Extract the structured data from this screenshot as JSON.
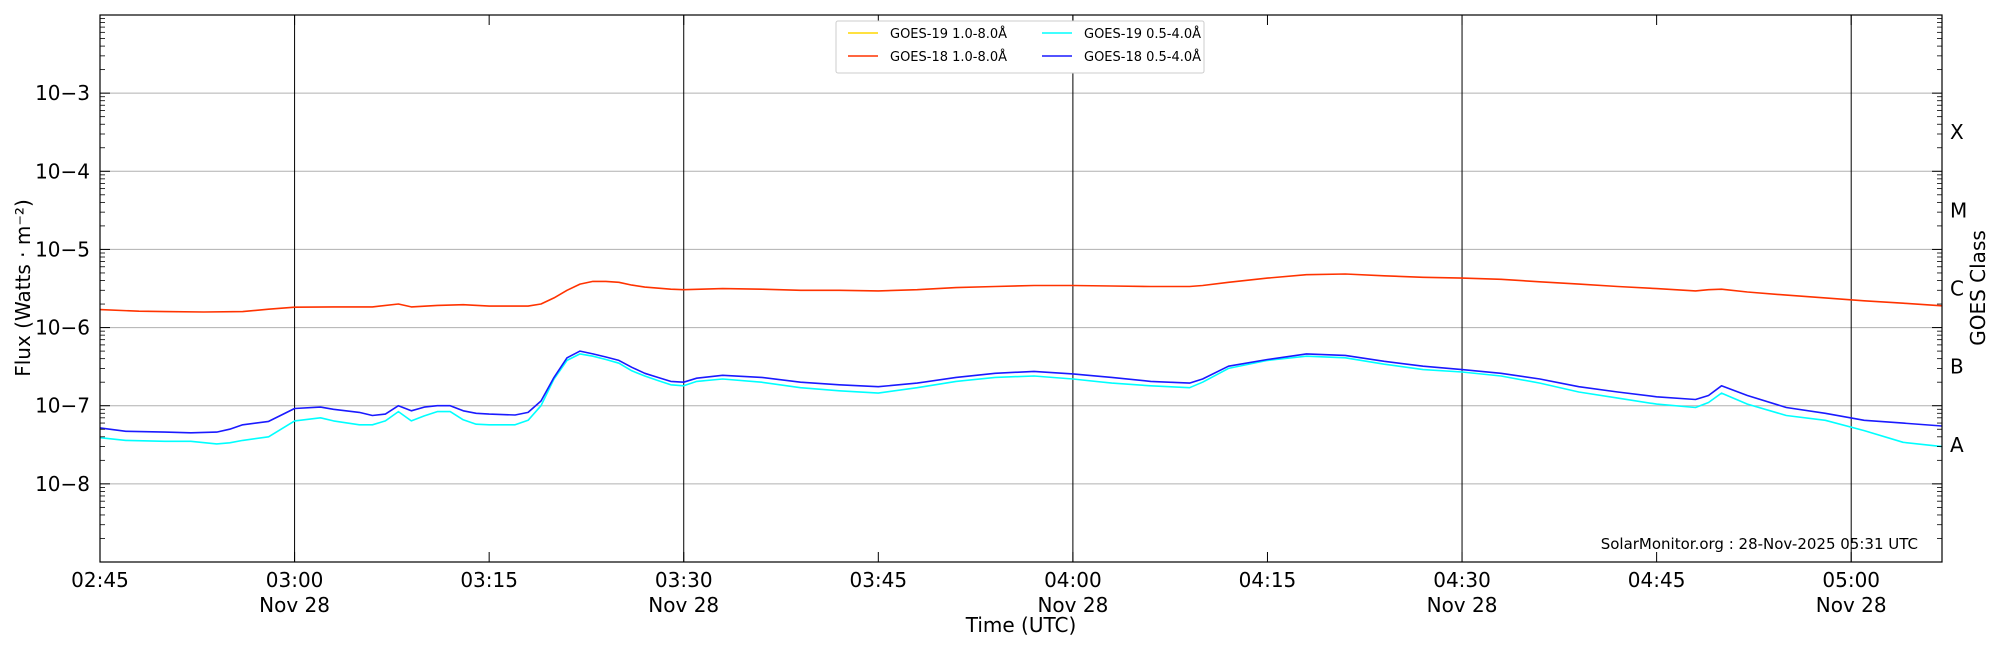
{
  "chart_data": {
    "type": "line",
    "y_scale": "log",
    "ylim": [
      1e-09,
      0.01
    ],
    "xlim": [
      "2025-11-28T02:45",
      "2025-11-28T05:07"
    ],
    "grid": "horizontal at each decade; vertical black lines at 03:00, 03:30, 04:00, 04:30, 05:00",
    "xlabel": "Time (UTC)",
    "ylabel": "Flux (Watts · m⁻²)",
    "y2label": "GOES Class",
    "credit": "SolarMonitor.org : 28-Nov-2025 05:31 UTC",
    "legend_position": "top-center",
    "x_ticks": [
      {
        "time": "02:45",
        "label": "02:45",
        "sublabel": ""
      },
      {
        "time": "03:00",
        "label": "03:00",
        "sublabel": "Nov 28"
      },
      {
        "time": "03:15",
        "label": "03:15",
        "sublabel": ""
      },
      {
        "time": "03:30",
        "label": "03:30",
        "sublabel": "Nov 28"
      },
      {
        "time": "03:45",
        "label": "03:45",
        "sublabel": ""
      },
      {
        "time": "04:00",
        "label": "04:00",
        "sublabel": "Nov 28"
      },
      {
        "time": "04:15",
        "label": "04:15",
        "sublabel": ""
      },
      {
        "time": "04:30",
        "label": "04:30",
        "sublabel": "Nov 28"
      },
      {
        "time": "04:45",
        "label": "04:45",
        "sublabel": ""
      },
      {
        "time": "05:00",
        "label": "05:00",
        "sublabel": "Nov 28"
      }
    ],
    "y_ticks": [
      {
        "exp": -8,
        "label": "10−8"
      },
      {
        "exp": -7,
        "label": "10−7"
      },
      {
        "exp": -6,
        "label": "10−6"
      },
      {
        "exp": -5,
        "label": "10−5"
      },
      {
        "exp": -4,
        "label": "10−4"
      },
      {
        "exp": -3,
        "label": "10−3"
      }
    ],
    "classes": [
      {
        "label": "A",
        "exp": -7.5
      },
      {
        "label": "B",
        "exp": -6.5
      },
      {
        "label": "C",
        "exp": -5.5
      },
      {
        "label": "M",
        "exp": -4.5
      },
      {
        "label": "X",
        "exp": -3.5
      }
    ],
    "series": [
      {
        "name": "GOES-19 1.0-8.0Å",
        "color": "#ffd700",
        "x": [],
        "y": []
      },
      {
        "name": "GOES-18 1.0-8.0Å",
        "color": "#ff3300",
        "x": [
          "02:45",
          "02:48",
          "02:50",
          "02:53",
          "02:56",
          "02:58",
          "03:00",
          "03:03",
          "03:06",
          "03:08",
          "03:09",
          "03:11",
          "03:13",
          "03:15",
          "03:18",
          "03:19",
          "03:20",
          "03:21",
          "03:22",
          "03:23",
          "03:24",
          "03:25",
          "03:26",
          "03:27",
          "03:29",
          "03:30",
          "03:33",
          "03:36",
          "03:39",
          "03:42",
          "03:45",
          "03:48",
          "03:51",
          "03:54",
          "03:57",
          "04:00",
          "04:03",
          "04:06",
          "04:09",
          "04:10",
          "04:12",
          "04:15",
          "04:18",
          "04:21",
          "04:24",
          "04:27",
          "04:30",
          "04:33",
          "04:36",
          "04:39",
          "04:42",
          "04:45",
          "04:48",
          "04:49",
          "04:50",
          "04:52",
          "04:55",
          "04:58",
          "05:01",
          "05:04",
          "05:07"
        ],
        "y": [
          1.7e-06,
          1.62e-06,
          1.6e-06,
          1.58e-06,
          1.6e-06,
          1.72e-06,
          1.82e-06,
          1.84e-06,
          1.84e-06,
          2e-06,
          1.84e-06,
          1.92e-06,
          1.96e-06,
          1.88e-06,
          1.88e-06,
          2e-06,
          2.4e-06,
          3e-06,
          3.6e-06,
          3.9e-06,
          3.9e-06,
          3.8e-06,
          3.5e-06,
          3.3e-06,
          3.1e-06,
          3.05e-06,
          3.15e-06,
          3.1e-06,
          3e-06,
          3e-06,
          2.95e-06,
          3.05e-06,
          3.25e-06,
          3.35e-06,
          3.45e-06,
          3.45e-06,
          3.4e-06,
          3.35e-06,
          3.35e-06,
          3.45e-06,
          3.8e-06,
          4.3e-06,
          4.75e-06,
          4.85e-06,
          4.6e-06,
          4.4e-06,
          4.3e-06,
          4.15e-06,
          3.85e-06,
          3.6e-06,
          3.35e-06,
          3.15e-06,
          2.95e-06,
          3.05e-06,
          3.1e-06,
          2.85e-06,
          2.6e-06,
          2.4e-06,
          2.2e-06,
          2.05e-06,
          1.9e-06
        ]
      },
      {
        "name": "GOES-19 0.5-4.0Å",
        "color": "#00ffff",
        "x": [
          "02:45",
          "02:47",
          "02:50",
          "02:52",
          "02:54",
          "02:55",
          "02:56",
          "02:58",
          "03:00",
          "03:02",
          "03:03",
          "03:05",
          "03:06",
          "03:07",
          "03:08",
          "03:09",
          "03:10",
          "03:11",
          "03:12",
          "03:13",
          "03:14",
          "03:15",
          "03:17",
          "03:18",
          "03:19",
          "03:20",
          "03:21",
          "03:22",
          "03:23",
          "03:24",
          "03:25",
          "03:26",
          "03:27",
          "03:28",
          "03:29",
          "03:30",
          "03:31",
          "03:33",
          "03:36",
          "03:39",
          "03:42",
          "03:45",
          "03:48",
          "03:51",
          "03:54",
          "03:57",
          "04:00",
          "04:03",
          "04:06",
          "04:09",
          "04:10",
          "04:12",
          "04:15",
          "04:18",
          "04:21",
          "04:24",
          "04:27",
          "04:30",
          "04:33",
          "04:36",
          "04:39",
          "04:42",
          "04:45",
          "04:48",
          "04:49",
          "04:50",
          "04:52",
          "04:55",
          "04:58",
          "05:01",
          "05:04",
          "05:07"
        ],
        "y": [
          3.9e-08,
          3.6e-08,
          3.5e-08,
          3.5e-08,
          3.25e-08,
          3.35e-08,
          3.6e-08,
          4e-08,
          6.4e-08,
          7e-08,
          6.4e-08,
          5.7e-08,
          5.7e-08,
          6.4e-08,
          8.4e-08,
          6.4e-08,
          7.4e-08,
          8.4e-08,
          8.4e-08,
          6.6e-08,
          5.8e-08,
          5.7e-08,
          5.7e-08,
          6.5e-08,
          1e-07,
          2.2e-07,
          3.8e-07,
          4.6e-07,
          4.3e-07,
          3.9e-07,
          3.5e-07,
          2.8e-07,
          2.4e-07,
          2.1e-07,
          1.85e-07,
          1.8e-07,
          2.05e-07,
          2.2e-07,
          2e-07,
          1.7e-07,
          1.55e-07,
          1.45e-07,
          1.7e-07,
          2.05e-07,
          2.3e-07,
          2.4e-07,
          2.2e-07,
          1.95e-07,
          1.8e-07,
          1.7e-07,
          2e-07,
          3e-07,
          3.8e-07,
          4.3e-07,
          4.1e-07,
          3.4e-07,
          2.9e-07,
          2.7e-07,
          2.4e-07,
          1.95e-07,
          1.5e-07,
          1.25e-07,
          1.05e-07,
          9.5e-08,
          1.1e-07,
          1.45e-07,
          1.05e-07,
          7.5e-08,
          6.5e-08,
          4.8e-08,
          3.4e-08,
          3e-08
        ]
      },
      {
        "name": "GOES-18 0.5-4.0Å",
        "color": "#1a1aff",
        "x": [
          "02:45",
          "02:47",
          "02:50",
          "02:52",
          "02:54",
          "02:55",
          "02:56",
          "02:58",
          "03:00",
          "03:02",
          "03:03",
          "03:05",
          "03:06",
          "03:07",
          "03:08",
          "03:09",
          "03:10",
          "03:11",
          "03:12",
          "03:13",
          "03:14",
          "03:15",
          "03:17",
          "03:18",
          "03:19",
          "03:20",
          "03:21",
          "03:22",
          "03:23",
          "03:24",
          "03:25",
          "03:26",
          "03:27",
          "03:28",
          "03:29",
          "03:30",
          "03:31",
          "03:33",
          "03:36",
          "03:39",
          "03:42",
          "03:45",
          "03:48",
          "03:51",
          "03:54",
          "03:57",
          "04:00",
          "04:03",
          "04:06",
          "04:09",
          "04:10",
          "04:12",
          "04:15",
          "04:18",
          "04:21",
          "04:24",
          "04:27",
          "04:30",
          "04:33",
          "04:36",
          "04:39",
          "04:42",
          "04:45",
          "04:48",
          "04:49",
          "04:50",
          "04:52",
          "04:55",
          "04:58",
          "05:01",
          "05:04",
          "05:07"
        ],
        "y": [
          5.2e-08,
          4.7e-08,
          4.6e-08,
          4.5e-08,
          4.6e-08,
          5e-08,
          5.7e-08,
          6.3e-08,
          9.2e-08,
          9.6e-08,
          9e-08,
          8.2e-08,
          7.5e-08,
          7.8e-08,
          1e-07,
          8.6e-08,
          9.6e-08,
          1e-07,
          1e-07,
          8.6e-08,
          8e-08,
          7.8e-08,
          7.6e-08,
          8.2e-08,
          1.15e-07,
          2.3e-07,
          4.1e-07,
          5e-07,
          4.6e-07,
          4.2e-07,
          3.8e-07,
          3.1e-07,
          2.6e-07,
          2.3e-07,
          2.05e-07,
          2e-07,
          2.25e-07,
          2.45e-07,
          2.3e-07,
          2e-07,
          1.85e-07,
          1.75e-07,
          1.95e-07,
          2.3e-07,
          2.6e-07,
          2.75e-07,
          2.55e-07,
          2.3e-07,
          2.05e-07,
          1.95e-07,
          2.2e-07,
          3.2e-07,
          3.9e-07,
          4.6e-07,
          4.4e-07,
          3.7e-07,
          3.2e-07,
          2.9e-07,
          2.6e-07,
          2.2e-07,
          1.75e-07,
          1.5e-07,
          1.3e-07,
          1.2e-07,
          1.35e-07,
          1.8e-07,
          1.35e-07,
          9.5e-08,
          8e-08,
          6.5e-08,
          6e-08,
          5.5e-08
        ]
      }
    ]
  }
}
